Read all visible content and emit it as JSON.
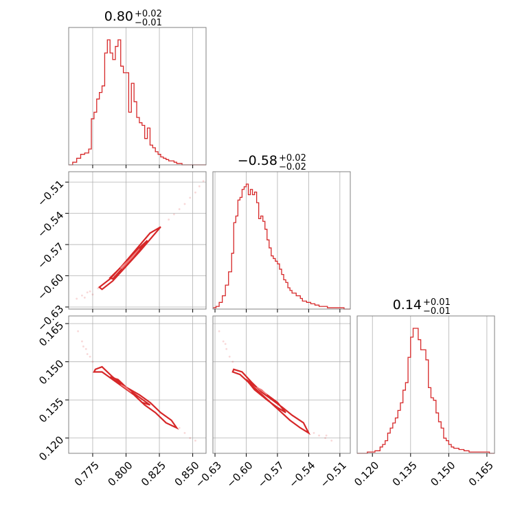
{
  "chart_data": {
    "type": "corner",
    "grid": true,
    "color": "#d62728",
    "parameters": [
      {
        "title_value": "0.80",
        "title_plus": "+0.02",
        "title_minus": "−0.01",
        "range": [
          0.757,
          0.86
        ],
        "ticks": [
          0.775,
          0.8,
          0.825,
          0.85
        ],
        "tick_labels": [
          "0.775",
          "0.800",
          "0.825",
          "0.850"
        ],
        "hist_edges": [
          0.757,
          0.76,
          0.763,
          0.766,
          0.769,
          0.772,
          0.774,
          0.776,
          0.778,
          0.78,
          0.782,
          0.784,
          0.786,
          0.788,
          0.79,
          0.792,
          0.794,
          0.796,
          0.798,
          0.8,
          0.802,
          0.804,
          0.806,
          0.808,
          0.81,
          0.812,
          0.814,
          0.816,
          0.818,
          0.82,
          0.822,
          0.824,
          0.826,
          0.828,
          0.83,
          0.832,
          0.834,
          0.836,
          0.838,
          0.84,
          0.842,
          0.845,
          0.848,
          0.851,
          0.854,
          0.857,
          0.86
        ],
        "hist_counts": [
          0,
          2,
          5,
          8,
          9,
          12,
          35,
          40,
          50,
          55,
          60,
          85,
          95,
          85,
          80,
          90,
          95,
          75,
          70,
          70,
          40,
          62,
          48,
          36,
          32,
          30,
          20,
          28,
          15,
          13,
          10,
          8,
          6,
          5,
          4,
          3,
          3,
          2,
          1,
          1,
          0,
          0,
          0,
          0,
          0,
          0
        ]
      },
      {
        "title_value": "−0.58",
        "title_plus": "+0.02",
        "title_minus": "−0.02",
        "range": [
          -0.632,
          -0.5
        ],
        "ticks": [
          -0.63,
          -0.6,
          -0.57,
          -0.54,
          -0.51
        ],
        "tick_labels": [
          "−0.63",
          "−0.60",
          "−0.57",
          "−0.54",
          "−0.51"
        ],
        "hist_edges": [
          -0.632,
          -0.629,
          -0.626,
          -0.623,
          -0.62,
          -0.617,
          -0.614,
          -0.612,
          -0.61,
          -0.608,
          -0.606,
          -0.604,
          -0.602,
          -0.6,
          -0.598,
          -0.596,
          -0.594,
          -0.592,
          -0.59,
          -0.588,
          -0.586,
          -0.584,
          -0.582,
          -0.58,
          -0.578,
          -0.576,
          -0.574,
          -0.572,
          -0.57,
          -0.568,
          -0.566,
          -0.564,
          -0.562,
          -0.56,
          -0.558,
          -0.556,
          -0.554,
          -0.552,
          -0.55,
          -0.548,
          -0.546,
          -0.542,
          -0.538,
          -0.534,
          -0.53,
          -0.526,
          -0.522,
          -0.518,
          -0.514,
          -0.51,
          -0.506,
          -0.5
        ],
        "hist_counts": [
          1,
          2,
          5,
          10,
          18,
          28,
          42,
          65,
          70,
          82,
          84,
          90,
          92,
          94,
          86,
          90,
          86,
          88,
          80,
          68,
          70,
          66,
          60,
          52,
          46,
          40,
          38,
          36,
          34,
          30,
          26,
          22,
          20,
          16,
          14,
          12,
          12,
          10,
          10,
          8,
          6,
          5,
          4,
          3,
          2,
          2,
          1,
          1,
          1,
          1,
          0
        ]
      },
      {
        "title_value": "0.14",
        "title_plus": "+0.01",
        "title_minus": "−0.01",
        "range": [
          0.114,
          0.168
        ],
        "ticks": [
          0.12,
          0.135,
          0.15,
          0.165
        ],
        "tick_labels": [
          "0.120",
          "0.135",
          "0.150",
          "0.165"
        ],
        "hist_edges": [
          0.114,
          0.118,
          0.121,
          0.123,
          0.124,
          0.125,
          0.126,
          0.127,
          0.128,
          0.129,
          0.13,
          0.131,
          0.132,
          0.133,
          0.134,
          0.135,
          0.136,
          0.137,
          0.138,
          0.139,
          0.14,
          0.141,
          0.142,
          0.143,
          0.144,
          0.145,
          0.146,
          0.147,
          0.148,
          0.149,
          0.15,
          0.151,
          0.152,
          0.154,
          0.156,
          0.158,
          0.16,
          0.163,
          0.166,
          0.168
        ],
        "hist_counts": [
          0,
          1,
          2,
          5,
          7,
          10,
          16,
          20,
          24,
          28,
          34,
          40,
          50,
          56,
          76,
          92,
          99,
          99,
          90,
          82,
          82,
          74,
          52,
          44,
          42,
          32,
          25,
          20,
          12,
          10,
          7,
          5,
          4,
          3,
          2,
          1,
          1,
          1,
          0
        ]
      }
    ],
    "contours": [
      {
        "pair": [
          0,
          1
        ],
        "levels": [
          [
            [
              0.782,
              -0.613
            ],
            [
              0.79,
              -0.605
            ],
            [
              0.8,
              -0.591
            ],
            [
              0.81,
              -0.577
            ],
            [
              0.818,
              -0.565
            ],
            [
              0.826,
              -0.553
            ],
            [
              0.818,
              -0.559
            ],
            [
              0.808,
              -0.574
            ],
            [
              0.798,
              -0.589
            ],
            [
              0.788,
              -0.603
            ],
            [
              0.78,
              -0.611
            ]
          ],
          [
            [
              0.79,
              -0.603
            ],
            [
              0.8,
              -0.589
            ],
            [
              0.81,
              -0.575
            ],
            [
              0.816,
              -0.566
            ],
            [
              0.806,
              -0.578
            ],
            [
              0.796,
              -0.592
            ],
            [
              0.788,
              -0.602
            ]
          ],
          [
            [
              0.797,
              -0.593
            ],
            [
              0.805,
              -0.582
            ],
            [
              0.81,
              -0.574
            ],
            [
              0.802,
              -0.585
            ],
            [
              0.796,
              -0.592
            ]
          ]
        ],
        "samples": [
          [
            0.763,
            -0.622
          ],
          [
            0.767,
            -0.619
          ],
          [
            0.771,
            -0.616
          ],
          [
            0.775,
            -0.618
          ],
          [
            0.779,
            -0.612
          ],
          [
            0.836,
            -0.541
          ],
          [
            0.84,
            -0.536
          ],
          [
            0.844,
            -0.531
          ],
          [
            0.848,
            -0.525
          ],
          [
            0.852,
            -0.52
          ],
          [
            0.855,
            -0.514
          ],
          [
            0.858,
            -0.509
          ],
          [
            0.832,
            -0.546
          ],
          [
            0.773,
            -0.615
          ],
          [
            0.769,
            -0.621
          ]
        ]
      },
      {
        "pair": [
          0,
          2
        ],
        "levels": [
          [
            [
              0.776,
              0.146
            ],
            [
              0.782,
              0.146
            ],
            [
              0.79,
              0.143
            ],
            [
              0.798,
              0.14
            ],
            [
              0.806,
              0.137
            ],
            [
              0.814,
              0.133
            ],
            [
              0.822,
              0.13
            ],
            [
              0.83,
              0.126
            ],
            [
              0.838,
              0.124
            ],
            [
              0.834,
              0.127
            ],
            [
              0.826,
              0.13
            ],
            [
              0.818,
              0.134
            ],
            [
              0.81,
              0.137
            ],
            [
              0.8,
              0.14
            ],
            [
              0.79,
              0.144
            ],
            [
              0.782,
              0.148
            ],
            [
              0.777,
              0.147
            ]
          ],
          [
            [
              0.788,
              0.144
            ],
            [
              0.796,
              0.141
            ],
            [
              0.804,
              0.138
            ],
            [
              0.812,
              0.134
            ],
            [
              0.818,
              0.133
            ],
            [
              0.81,
              0.136
            ],
            [
              0.802,
              0.139
            ],
            [
              0.794,
              0.143
            ]
          ],
          [
            [
              0.796,
              0.141
            ],
            [
              0.804,
              0.138
            ],
            [
              0.8,
              0.14
            ]
          ]
        ],
        "samples": [
          [
            0.764,
            0.162
          ],
          [
            0.767,
            0.158
          ],
          [
            0.77,
            0.155
          ],
          [
            0.773,
            0.152
          ],
          [
            0.775,
            0.15
          ],
          [
            0.84,
            0.124
          ],
          [
            0.844,
            0.122
          ],
          [
            0.848,
            0.12
          ],
          [
            0.852,
            0.119
          ],
          [
            0.768,
            0.156
          ],
          [
            0.771,
            0.153
          ]
        ]
      },
      {
        "pair": [
          1,
          2
        ],
        "levels": [
          [
            [
              -0.613,
              0.146
            ],
            [
              -0.606,
              0.145
            ],
            [
              -0.598,
              0.142
            ],
            [
              -0.59,
              0.139
            ],
            [
              -0.582,
              0.136
            ],
            [
              -0.574,
              0.133
            ],
            [
              -0.566,
              0.13
            ],
            [
              -0.558,
              0.127
            ],
            [
              -0.548,
              0.124
            ],
            [
              -0.54,
              0.122
            ],
            [
              -0.545,
              0.126
            ],
            [
              -0.556,
              0.129
            ],
            [
              -0.565,
              0.132
            ],
            [
              -0.575,
              0.135
            ],
            [
              -0.585,
              0.138
            ],
            [
              -0.595,
              0.142
            ],
            [
              -0.604,
              0.146
            ],
            [
              -0.612,
              0.147
            ]
          ],
          [
            [
              -0.6,
              0.143
            ],
            [
              -0.59,
              0.14
            ],
            [
              -0.58,
              0.137
            ],
            [
              -0.57,
              0.134
            ],
            [
              -0.562,
              0.13
            ],
            [
              -0.57,
              0.132
            ],
            [
              -0.58,
              0.135
            ],
            [
              -0.592,
              0.139
            ]
          ],
          [
            [
              -0.59,
              0.14
            ],
            [
              -0.58,
              0.137
            ],
            [
              -0.585,
              0.139
            ]
          ]
        ],
        "samples": [
          [
            -0.626,
            0.162
          ],
          [
            -0.622,
            0.158
          ],
          [
            -0.619,
            0.155
          ],
          [
            -0.616,
            0.152
          ],
          [
            -0.613,
            0.15
          ],
          [
            -0.535,
            0.122
          ],
          [
            -0.53,
            0.121
          ],
          [
            -0.524,
            0.12
          ],
          [
            -0.518,
            0.119
          ],
          [
            -0.523,
            0.121
          ],
          [
            -0.62,
            0.157
          ]
        ]
      }
    ]
  }
}
